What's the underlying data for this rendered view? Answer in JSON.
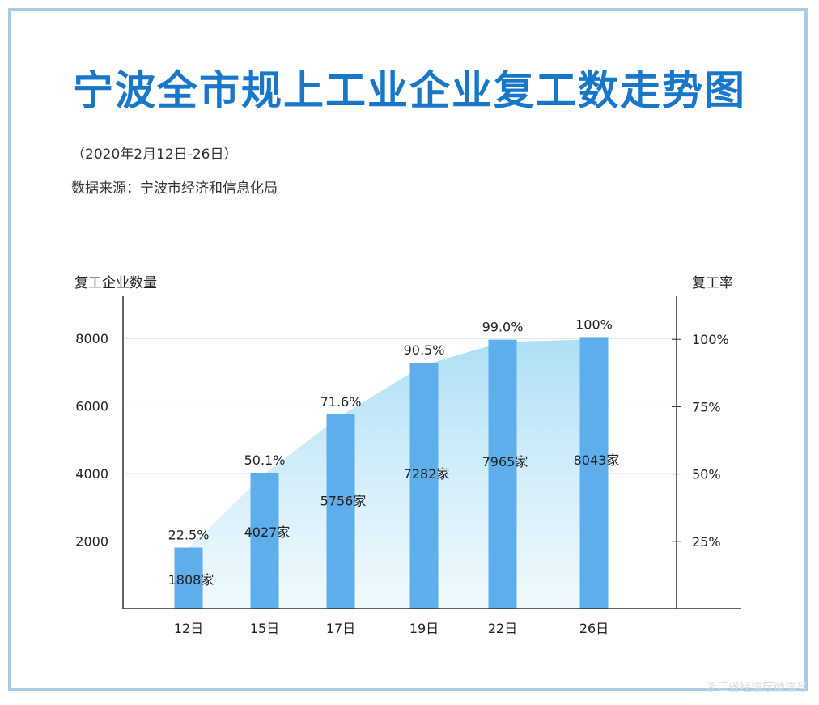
{
  "header": {
    "title": "宁波全市规上工业企业复工数走势图",
    "date_range": "（2020年2月12日-26日）",
    "source": "数据来源：宁波市经济和信息化局"
  },
  "watermark": "浙江省经信厅微信号",
  "colors": {
    "bar": "#5daeea",
    "area_top": "#a8ddf5",
    "title": "#1877c9",
    "frame": "#a9cbe6"
  },
  "chart_data": {
    "type": "bar",
    "title": "宁波全市规上工业企业复工数走势图",
    "categories": [
      "12日",
      "15日",
      "17日",
      "19日",
      "22日",
      "26日"
    ],
    "series": [
      {
        "name": "复工企业数量",
        "axis": "left",
        "values": [
          1808,
          4027,
          5756,
          7282,
          7965,
          8043
        ],
        "labels": [
          "1808家",
          "4027家",
          "5756家",
          "7282家",
          "7965家",
          "8043家"
        ]
      },
      {
        "name": "复工率",
        "type": "area",
        "axis": "right",
        "values": [
          22.5,
          50.1,
          71.6,
          90.5,
          99.0,
          100
        ],
        "labels": [
          "22.5%",
          "50.1%",
          "71.6%",
          "90.5%",
          "99.0%",
          "100%"
        ]
      }
    ],
    "ylabel_left": "复工企业数量",
    "ylabel_right": "复工率",
    "left_ticks": [
      "2000",
      "4000",
      "6000",
      "8000"
    ],
    "left_tick_values": [
      2000,
      4000,
      6000,
      8000
    ],
    "right_ticks": [
      "25%",
      "50%",
      "75%",
      "100%"
    ],
    "right_tick_values": [
      25,
      50,
      75,
      100
    ],
    "ylim_left": [
      0,
      9250
    ],
    "ylim_right": [
      0,
      116
    ],
    "grid": true
  }
}
